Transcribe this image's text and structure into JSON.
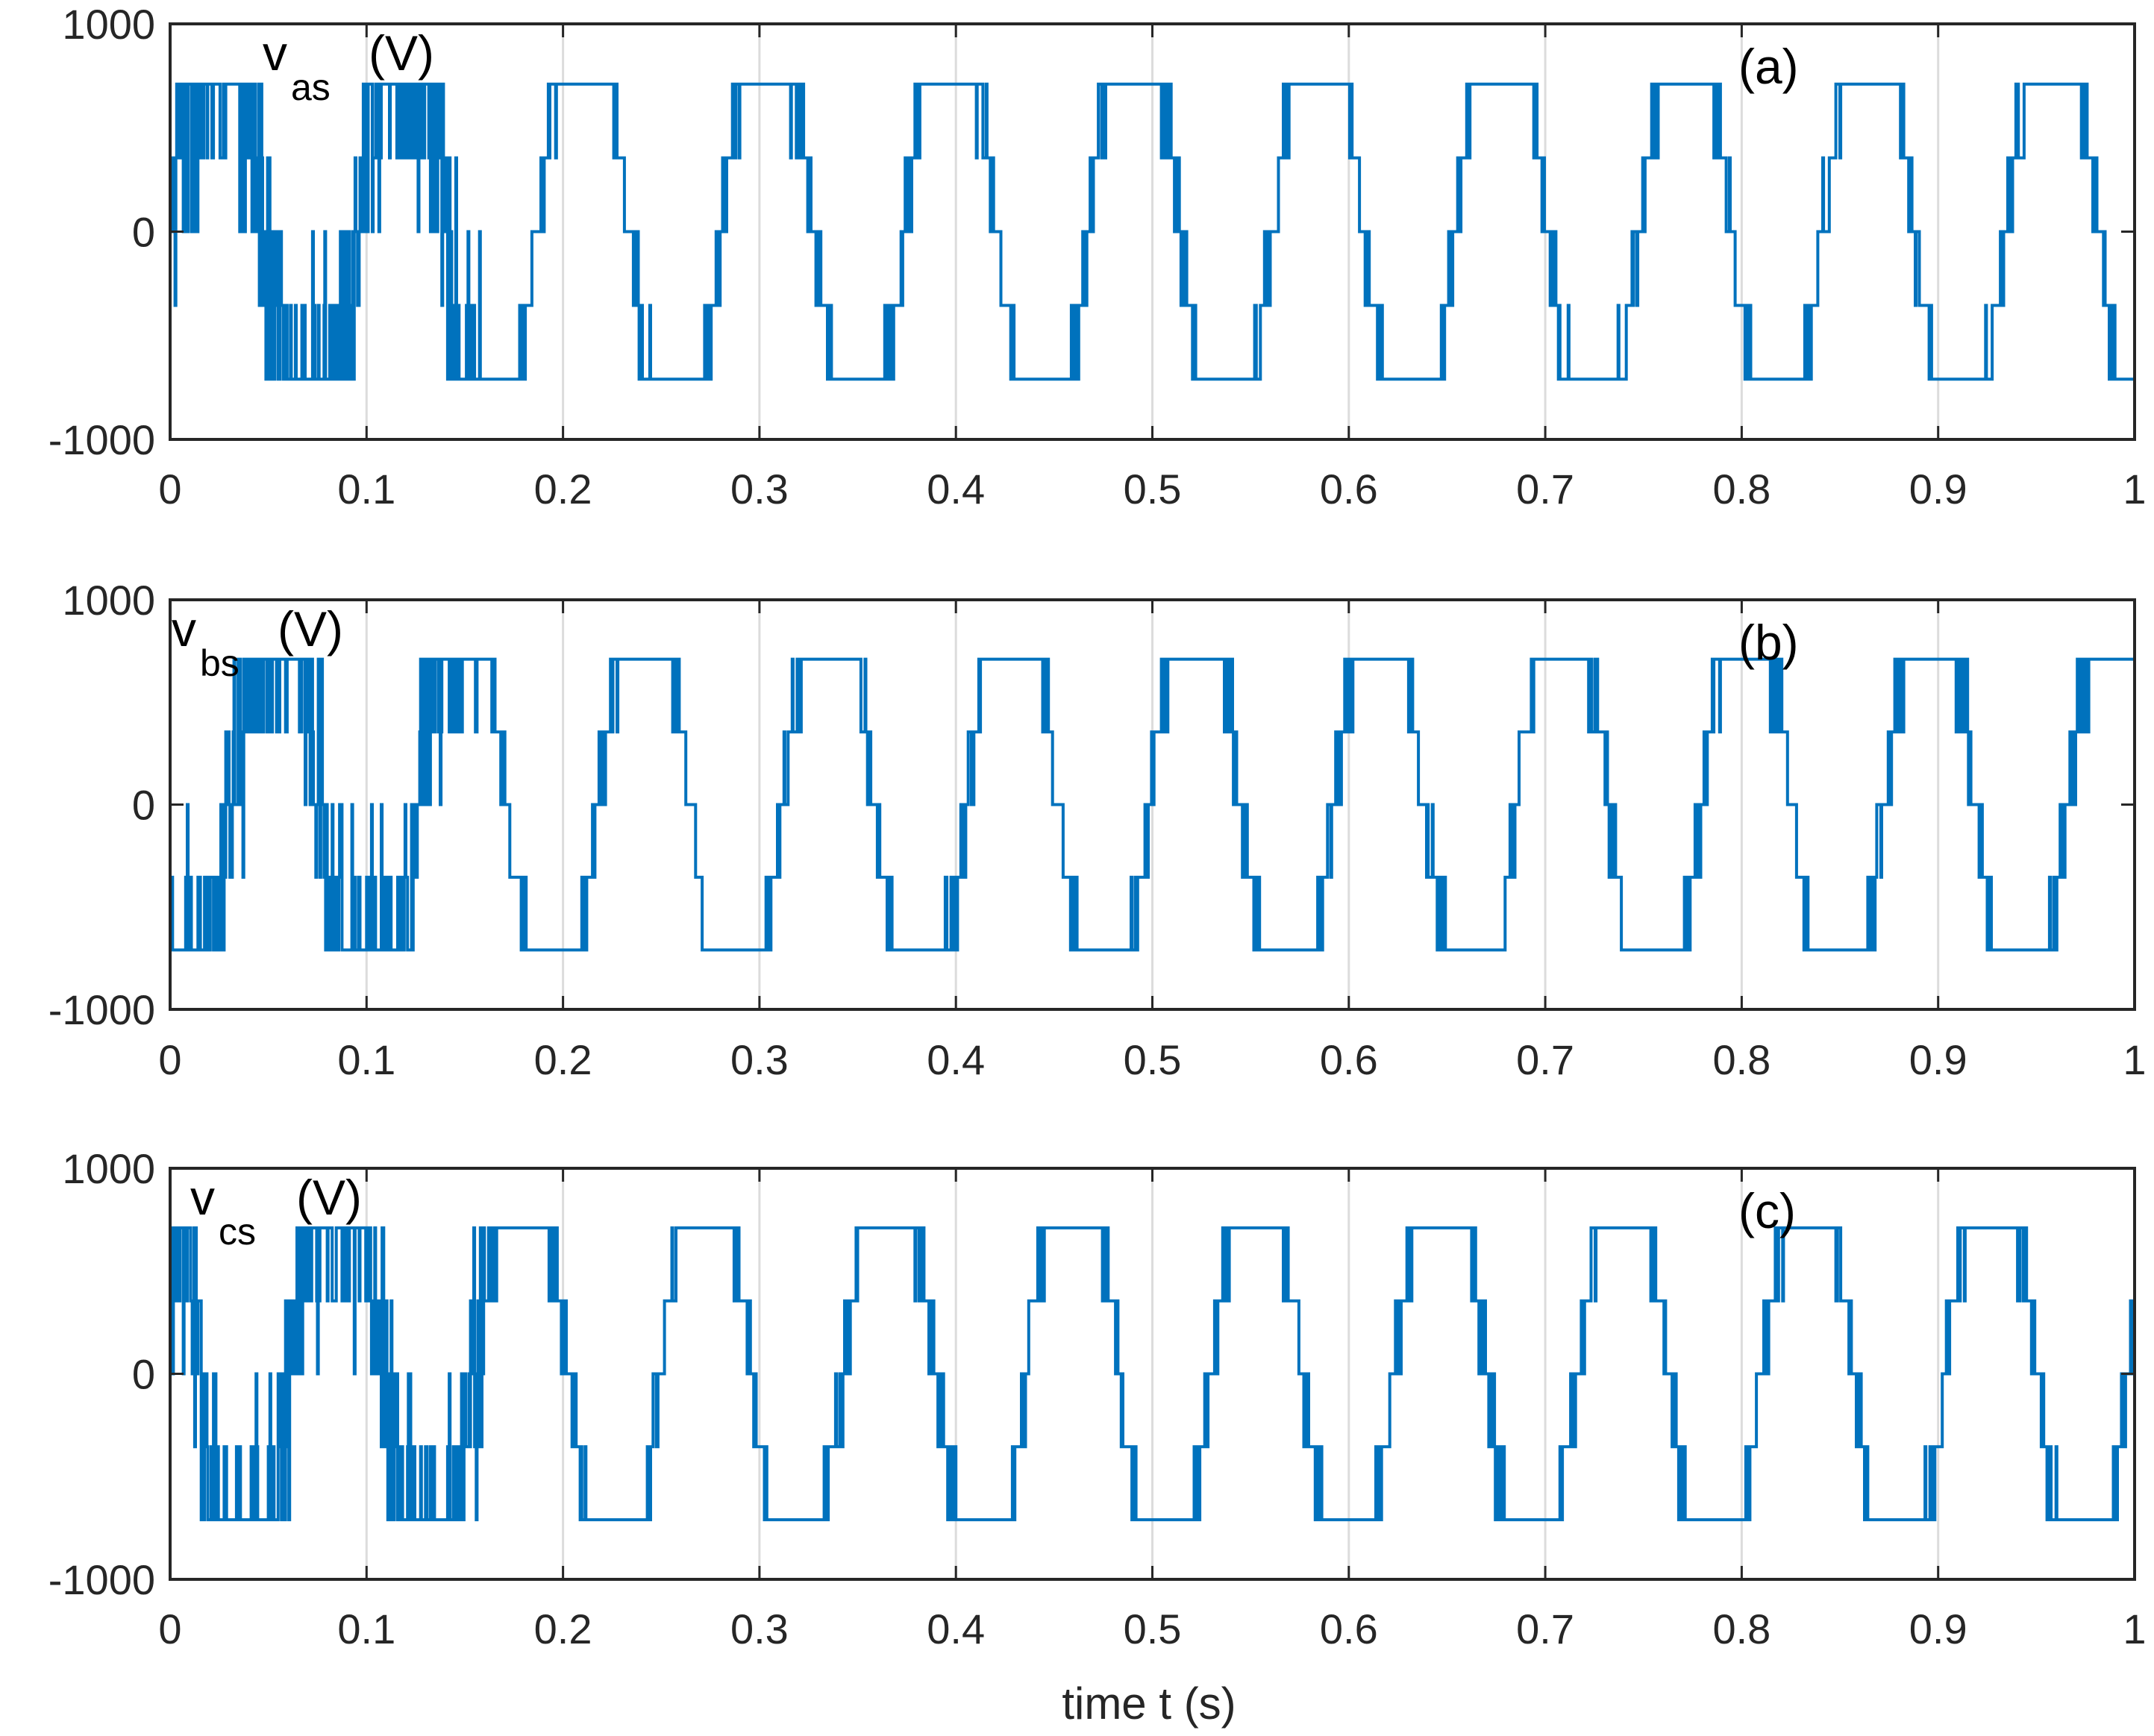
{
  "figure": {
    "xlabel": "time t (s)",
    "series_color": "#0072BD"
  },
  "chart_data": [
    {
      "type": "line",
      "panel_label": "(a)",
      "annotation": {
        "symbol": "v",
        "subscript": "as",
        "unit": "(V)"
      },
      "xlabel": "",
      "ylabel": "",
      "xlim": [
        0,
        1
      ],
      "ylim": [
        -1000,
        1000
      ],
      "xticks": [
        "0",
        "0.1",
        "0.2",
        "0.3",
        "0.4",
        "0.5",
        "0.6",
        "0.7",
        "0.8",
        "0.9",
        "1"
      ],
      "yticks": [
        "-1000",
        "0",
        "1000"
      ],
      "grid": "vertical",
      "levels": [
        -710,
        -355,
        0,
        355,
        710
      ],
      "fundamental_hz": 10.7,
      "phase_deg": 0,
      "series": [
        {
          "values_description": "",
          "level_amplitude_V": 710
        }
      ]
    },
    {
      "type": "line",
      "panel_label": "(b)",
      "annotation": {
        "symbol": "v",
        "subscript": "bs",
        "unit": "(V)"
      },
      "xlabel": "",
      "ylabel": "",
      "xlim": [
        0,
        1
      ],
      "ylim": [
        -1000,
        1000
      ],
      "xticks": [
        "0",
        "0.1",
        "0.2",
        "0.3",
        "0.4",
        "0.5",
        "0.6",
        "0.7",
        "0.8",
        "0.9",
        "1"
      ],
      "yticks": [
        "-1000",
        "0",
        "1000"
      ],
      "grid": "vertical",
      "levels": [
        -710,
        -355,
        0,
        355,
        710
      ],
      "fundamental_hz": 10.7,
      "phase_deg": -120,
      "series": [
        {
          "values_description": "",
          "level_amplitude_V": 710
        }
      ]
    },
    {
      "type": "line",
      "panel_label": "(c)",
      "annotation": {
        "symbol": "v",
        "subscript": "cs",
        "unit": "(V)"
      },
      "xlabel": "time t (s)",
      "ylabel": "",
      "xlim": [
        0,
        1
      ],
      "ylim": [
        -1000,
        1000
      ],
      "xticks": [
        "0",
        "0.1",
        "0.2",
        "0.3",
        "0.4",
        "0.5",
        "0.6",
        "0.7",
        "0.8",
        "0.9",
        "1"
      ],
      "yticks": [
        "-1000",
        "0",
        "1000"
      ],
      "grid": "vertical",
      "levels": [
        -710,
        -355,
        0,
        355,
        710
      ],
      "fundamental_hz": 10.7,
      "phase_deg": 120,
      "series": [
        {
          "values_description": "",
          "level_amplitude_V": 710
        }
      ]
    }
  ]
}
